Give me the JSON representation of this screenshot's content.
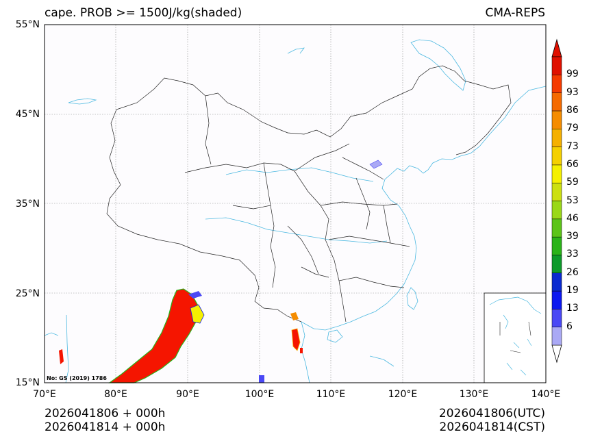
{
  "title_left": "cape. PROB >= 1500J/kg(shaded)",
  "title_right": "CMA-REPS",
  "lat_labels": [
    "55°N",
    "45°N",
    "35°N",
    "25°N",
    "15°N"
  ],
  "lon_labels": [
    "70°E",
    "80°E",
    "90°E",
    "100°E",
    "110°E",
    "120°E",
    "130°E",
    "140°E"
  ],
  "footer_left": [
    "2026041806  +  000h",
    "2026041814  +  000h"
  ],
  "footer_right": [
    "2026041806(UTC)",
    "2026041814(CST)"
  ],
  "map_note": "No: GS (2019) 1786",
  "colorbar": {
    "ticks": [
      "99",
      "93",
      "86",
      "79",
      "73",
      "66",
      "59",
      "53",
      "46",
      "39",
      "33",
      "26",
      "19",
      "13",
      "6"
    ],
    "colors": [
      "#aaa9f5",
      "#4a48f5",
      "#0c18f0",
      "#0a2ad0",
      "#0d9a2a",
      "#2ab318",
      "#5cc418",
      "#9ad818",
      "#cce010",
      "#f5f000",
      "#f5d000",
      "#f5b000",
      "#f58c00",
      "#f56a00",
      "#f53a00",
      "#e01000"
    ]
  },
  "colors": {
    "coast": "#4ab8e0",
    "border": "#222222",
    "grid": "#8a8a8a",
    "prob_high": "#f51500"
  }
}
